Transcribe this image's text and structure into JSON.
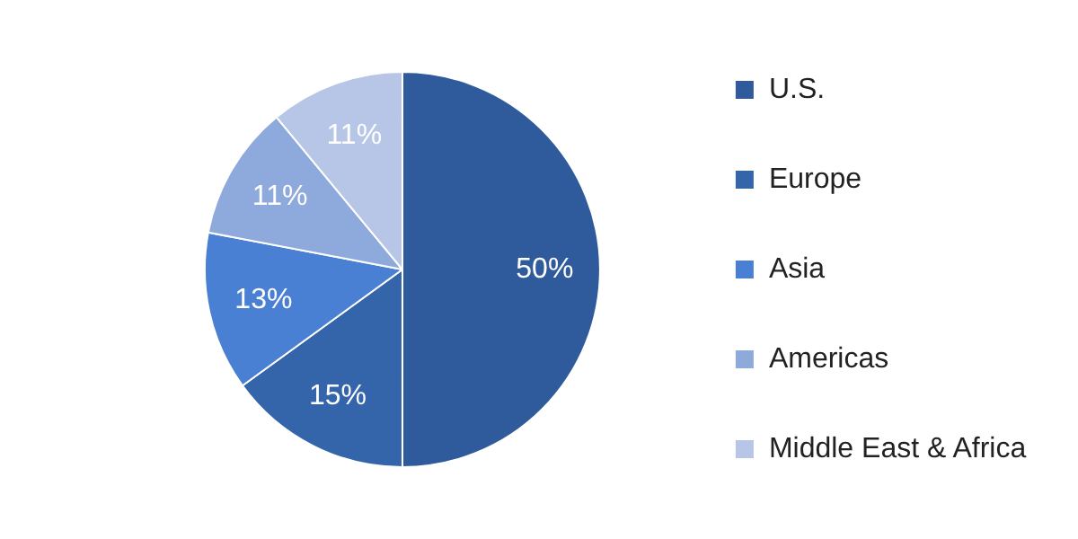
{
  "chart_data": {
    "type": "pie",
    "categories": [
      "U.S.",
      "Europe",
      "Asia",
      "Americas",
      "Middle East & Africa"
    ],
    "values": [
      50,
      15,
      13,
      11,
      11
    ],
    "colors": [
      "#2f5a9b",
      "#3465ab",
      "#4a80d3",
      "#8ea9dc",
      "#b7c5e6"
    ],
    "value_labels": [
      "50%",
      "15%",
      "13%",
      "11%",
      "11%"
    ],
    "legend": "right"
  }
}
